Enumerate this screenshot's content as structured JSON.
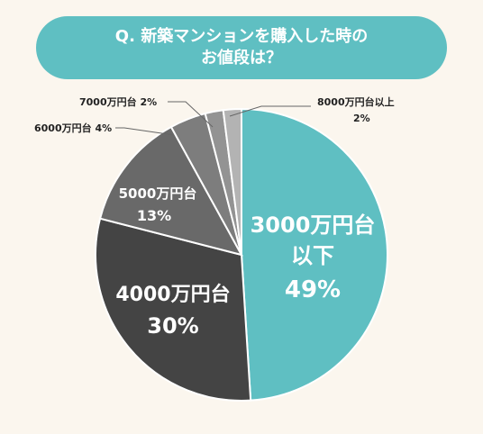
{
  "title": {
    "line1": "Q. 新築マンションを購入した時の",
    "line2": "お値段は？"
  },
  "chart_data": {
    "type": "pie",
    "title": "Q. 新築マンションを購入した時の お値段は？",
    "slices": [
      {
        "label": "3000万円台以下",
        "value": 49,
        "display": "49%",
        "color": "#5fbfc2"
      },
      {
        "label": "4000万円台",
        "value": 30,
        "display": "30%",
        "color": "#444444"
      },
      {
        "label": "5000万円台",
        "value": 13,
        "display": "13%",
        "color": "#696969"
      },
      {
        "label": "6000万円台",
        "value": 4,
        "display": "4%",
        "color": "#7d7d7d"
      },
      {
        "label": "7000万円台",
        "value": 2,
        "display": "2%",
        "color": "#939393"
      },
      {
        "label": "8000万円台以上",
        "value": 2,
        "display": "2%",
        "color": "#b3b3b3"
      }
    ]
  },
  "labels": {
    "s0_line1": "3000万円台",
    "s0_line2": "以下",
    "s0_pct": "49%",
    "s1_line1": "4000万円台",
    "s1_pct": "30%",
    "s2_line1": "5000万円台",
    "s2_pct": "13%",
    "s3_text": "6000万円台 4%",
    "s4_text": "7000万円台 2%",
    "s5_line1": "8000万円台以上",
    "s5_line2": "2%"
  }
}
